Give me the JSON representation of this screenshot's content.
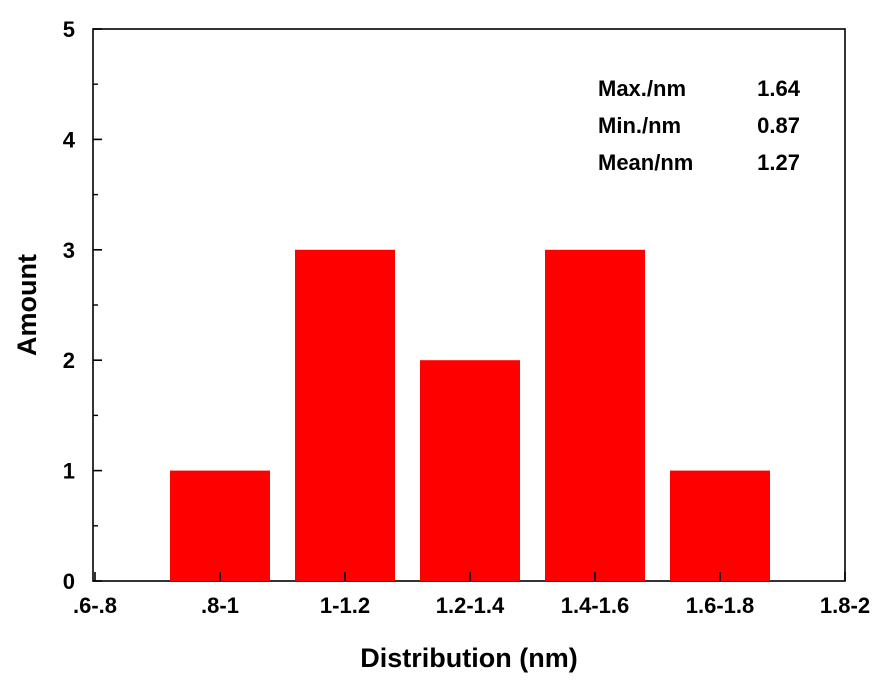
{
  "chart_data": {
    "type": "bar",
    "categories": [
      ".6-.8",
      ".8-1",
      "1-1.2",
      "1.2-1.4",
      "1.4-1.6",
      "1.6-1.8",
      "1.8-2"
    ],
    "values": [
      0,
      1,
      3,
      2,
      3,
      1,
      0
    ],
    "title": "",
    "xlabel": "Distribution (nm)",
    "ylabel": "Amount",
    "ylim": [
      0,
      5
    ],
    "yticks": [
      "0",
      "1",
      "2",
      "3",
      "4",
      "5"
    ],
    "bar_color": "#ff0000",
    "grid": false,
    "annotations": [
      {
        "label": "Max./nm",
        "value": "1.64"
      },
      {
        "label": "Min./nm",
        "value": "0.87"
      },
      {
        "label": "Mean/nm",
        "value": "1.27"
      }
    ]
  }
}
